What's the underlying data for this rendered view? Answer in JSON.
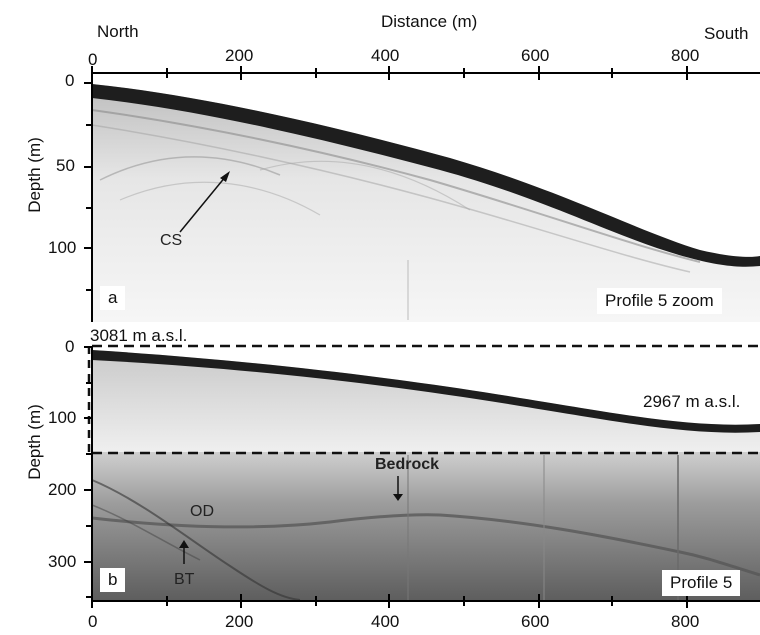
{
  "figure": {
    "top_axis": {
      "title": "Distance (m)",
      "left_label": "North",
      "right_label": "South",
      "ticks": [
        "0",
        "200",
        "400",
        "600",
        "800"
      ]
    },
    "bottom_axis": {
      "ticks": [
        "0",
        "200",
        "400",
        "600",
        "800"
      ]
    },
    "panel_a": {
      "tag": "a",
      "profile_label": "Profile 5 zoom",
      "ylabel": "Depth (m)",
      "yticks": [
        "0",
        "50",
        "100"
      ],
      "annotations": {
        "cs": "CS"
      }
    },
    "panel_b": {
      "tag": "b",
      "profile_label": "Profile 5",
      "ylabel": "Depth (m)",
      "yticks": [
        "0",
        "100",
        "200",
        "300"
      ],
      "elevation_start": "3081 m a.s.l.",
      "elevation_end": "2967 m a.s.l.",
      "annotations": {
        "bedrock": "Bedrock",
        "od": "OD",
        "bt": "BT"
      }
    }
  },
  "colors": {
    "ice": "#f2f2f2",
    "surface": "#1a1a1a",
    "bedrock_zone": "#7a7a7a",
    "frame": "#000000"
  }
}
